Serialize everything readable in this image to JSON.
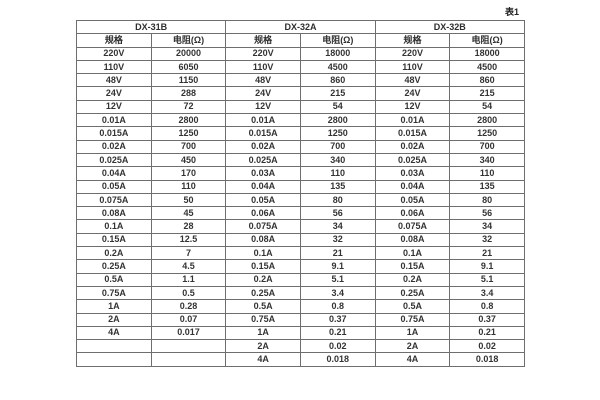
{
  "page": {
    "caption": "表1",
    "background_color": "#ffffff",
    "border_color": "#6e6e6e",
    "text_color": "#333333"
  },
  "table": {
    "groups": [
      {
        "name": "DX-31B",
        "spec_header": "规格",
        "resistance_header": "电阻(Ω)"
      },
      {
        "name": "DX-32A",
        "spec_header": "规格",
        "resistance_header": "电阻(Ω)"
      },
      {
        "name": "DX-32B",
        "spec_header": "规格",
        "resistance_header": "电阻(Ω)"
      }
    ],
    "rows": [
      [
        "220V",
        "20000",
        "220V",
        "18000",
        "220V",
        "18000"
      ],
      [
        "110V",
        "6050",
        "110V",
        "4500",
        "110V",
        "4500"
      ],
      [
        "48V",
        "1150",
        "48V",
        "860",
        "48V",
        "860"
      ],
      [
        "24V",
        "288",
        "24V",
        "215",
        "24V",
        "215"
      ],
      [
        "12V",
        "72",
        "12V",
        "54",
        "12V",
        "54"
      ],
      [
        "0.01A",
        "2800",
        "0.01A",
        "2800",
        "0.01A",
        "2800"
      ],
      [
        "0.015A",
        "1250",
        "0.015A",
        "1250",
        "0.015A",
        "1250"
      ],
      [
        "0.02A",
        "700",
        "0.02A",
        "700",
        "0.02A",
        "700"
      ],
      [
        "0.025A",
        "450",
        "0.025A",
        "340",
        "0.025A",
        "340"
      ],
      [
        "0.04A",
        "170",
        "0.03A",
        "110",
        "0.03A",
        "110"
      ],
      [
        "0.05A",
        "110",
        "0.04A",
        "135",
        "0.04A",
        "135"
      ],
      [
        "0.075A",
        "50",
        "0.05A",
        "80",
        "0.05A",
        "80"
      ],
      [
        "0.08A",
        "45",
        "0.06A",
        "56",
        "0.06A",
        "56"
      ],
      [
        "0.1A",
        "28",
        "0.075A",
        "34",
        "0.075A",
        "34"
      ],
      [
        "0.15A",
        "12.5",
        "0.08A",
        "32",
        "0.08A",
        "32"
      ],
      [
        "0.2A",
        "7",
        "0.1A",
        "21",
        "0.1A",
        "21"
      ],
      [
        "0.25A",
        "4.5",
        "0.15A",
        "9.1",
        "0.15A",
        "9.1"
      ],
      [
        "0.5A",
        "1.1",
        "0.2A",
        "5.1",
        "0.2A",
        "5.1"
      ],
      [
        "0.75A",
        "0.5",
        "0.25A",
        "3.4",
        "0.25A",
        "3.4"
      ],
      [
        "1A",
        "0.28",
        "0.5A",
        "0.8",
        "0.5A",
        "0.8"
      ],
      [
        "2A",
        "0.07",
        "0.75A",
        "0.37",
        "0.75A",
        "0.37"
      ],
      [
        "4A",
        "0.017",
        "1A",
        "0.21",
        "1A",
        "0.21"
      ],
      [
        "",
        "",
        "2A",
        "0.02",
        "2A",
        "0.02"
      ],
      [
        "",
        "",
        "4A",
        "0.018",
        "4A",
        "0.018"
      ]
    ]
  }
}
